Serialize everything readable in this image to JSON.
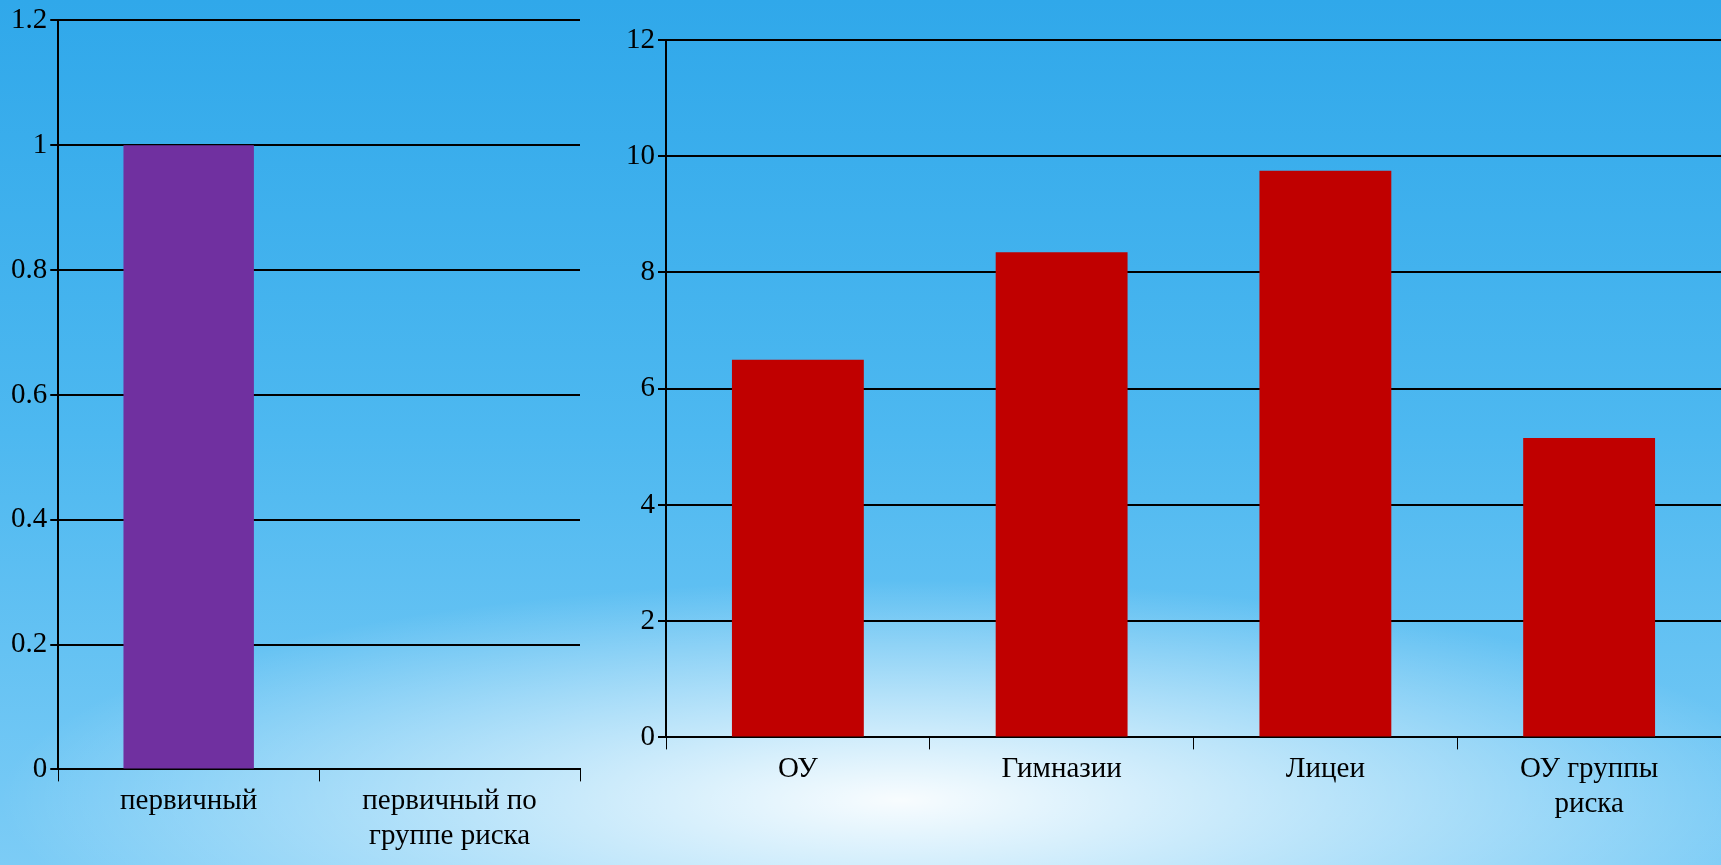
{
  "chart_data": [
    {
      "type": "bar",
      "categories": [
        "первичный",
        "первичный по группе риска"
      ],
      "values": [
        1,
        0
      ],
      "color": "#7030a0",
      "ylim": [
        0,
        1.2
      ],
      "yticks": [
        0,
        0.2,
        0.4,
        0.6,
        0.8,
        1,
        1.2
      ],
      "grid": "y",
      "legend": false
    },
    {
      "type": "bar",
      "categories": [
        "ОУ",
        "Гимназии",
        "Лицеи",
        "ОУ группы риска"
      ],
      "values": [
        6.5,
        8.35,
        9.75,
        5.15
      ],
      "color": "#c00000",
      "ylim": [
        0,
        12
      ],
      "yticks": [
        0,
        2,
        4,
        6,
        8,
        10,
        12
      ],
      "grid": "y",
      "legend": false
    }
  ]
}
